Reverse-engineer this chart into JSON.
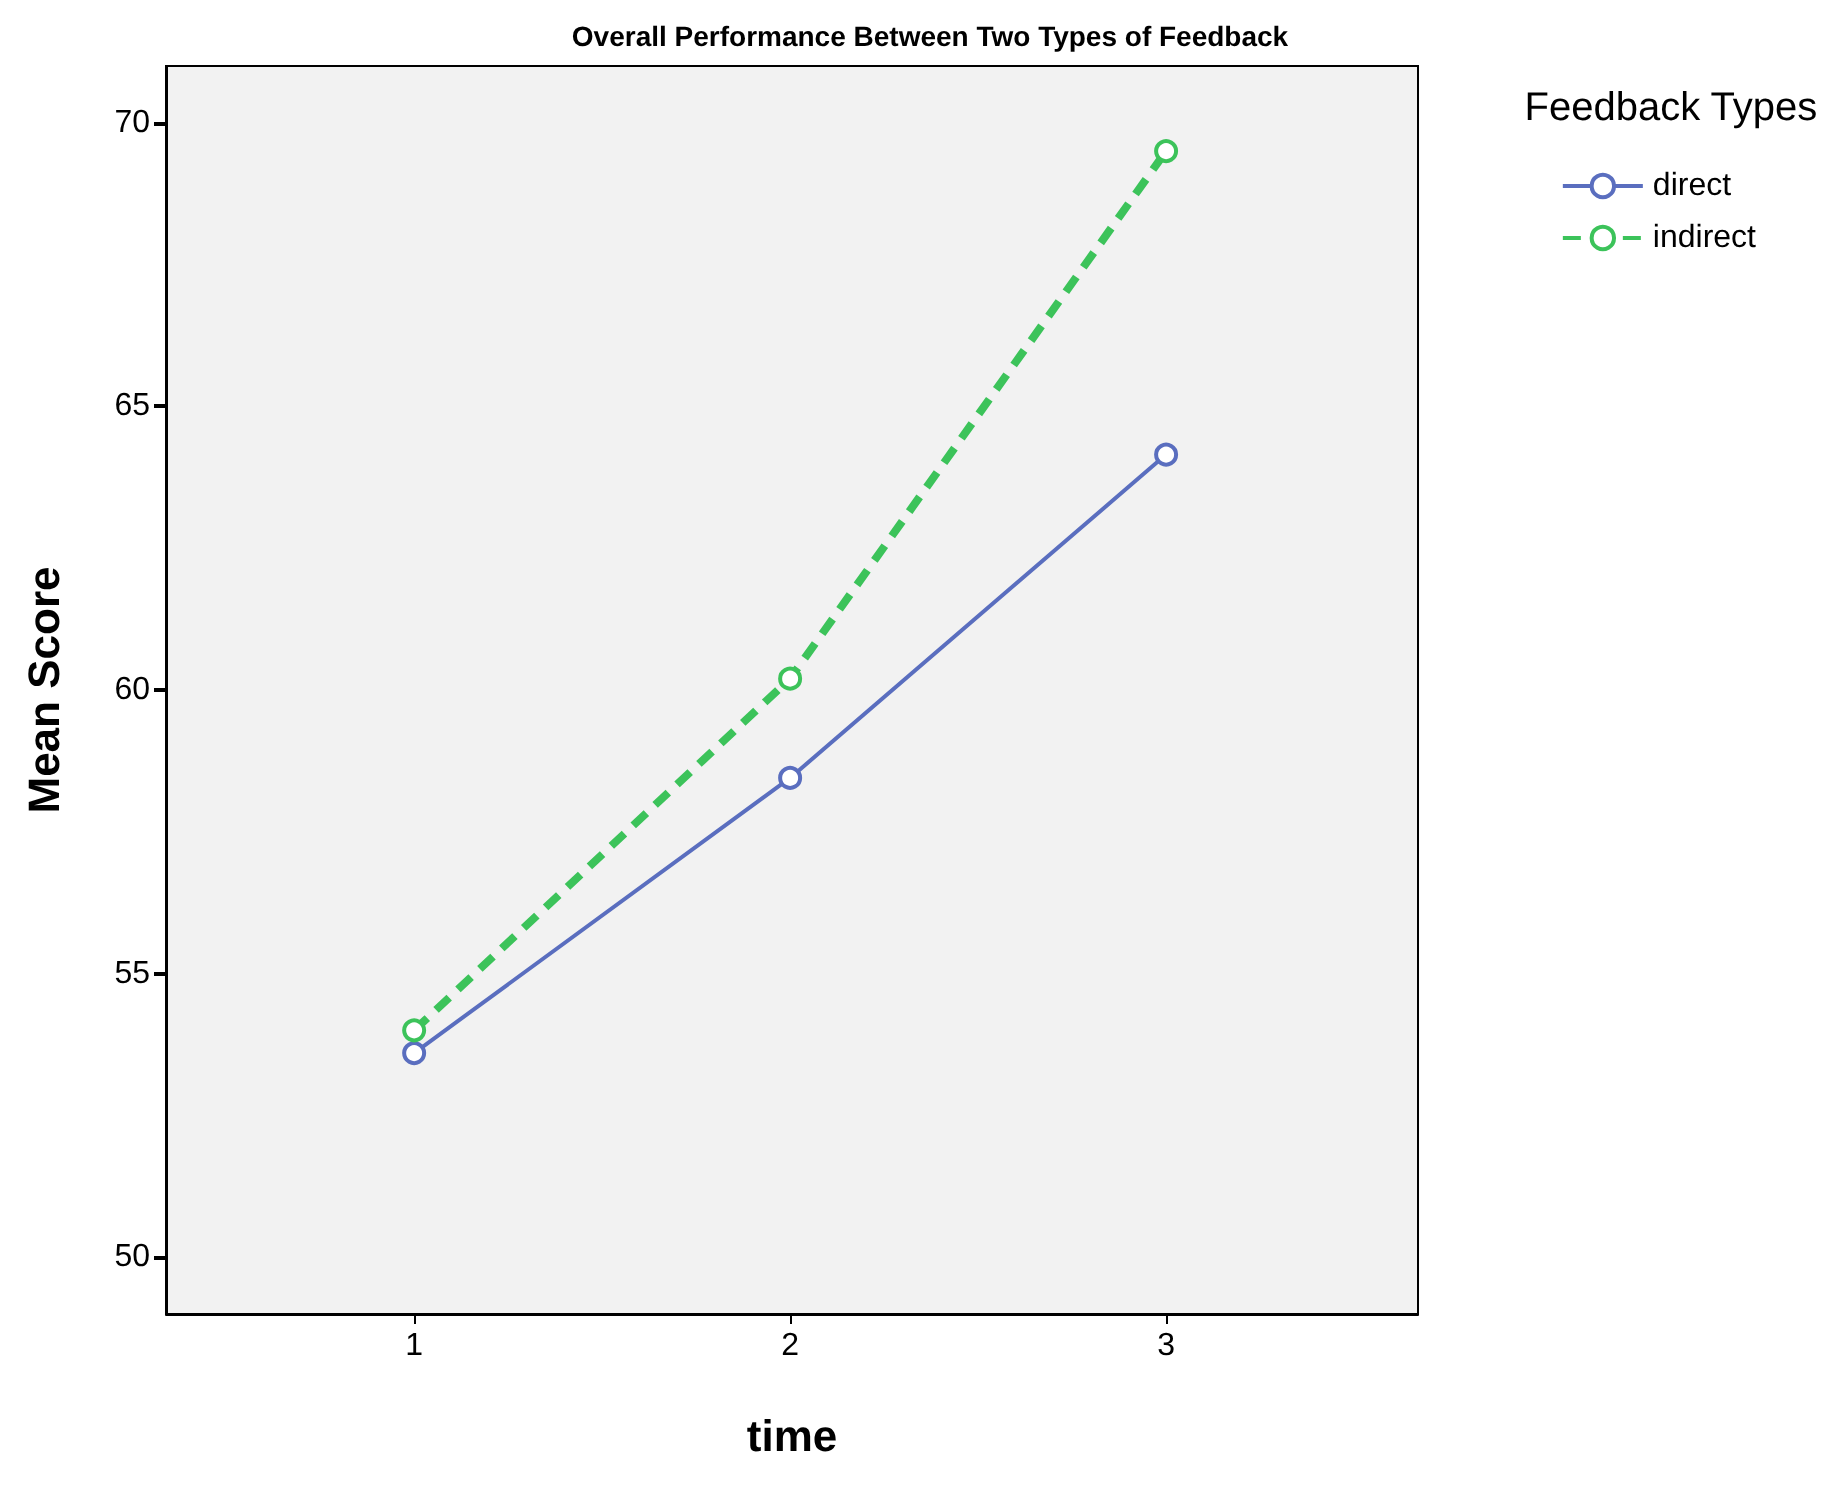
{
  "chart_data": {
    "type": "line",
    "title": "Overall Performance Between Two Types of Feedback",
    "xlabel": "time",
    "ylabel": "Mean Score",
    "legend_title": "Feedback Types",
    "x": [
      1,
      2,
      3
    ],
    "xlim": [
      0.34,
      3.67
    ],
    "xticks": [
      1,
      2,
      3
    ],
    "ylim": [
      49,
      71
    ],
    "yticks": [
      50,
      55,
      60,
      65,
      70
    ],
    "series": [
      {
        "name": "direct",
        "color": "#5a6ebf",
        "values": [
          53.6,
          58.45,
          64.15
        ],
        "line_style": "solid"
      },
      {
        "name": "indirect",
        "color": "#3cc35a",
        "values": [
          54.0,
          60.2,
          69.5
        ],
        "line_style": "dashed"
      }
    ],
    "marker": "circle",
    "grid": false,
    "legend": "top right"
  }
}
